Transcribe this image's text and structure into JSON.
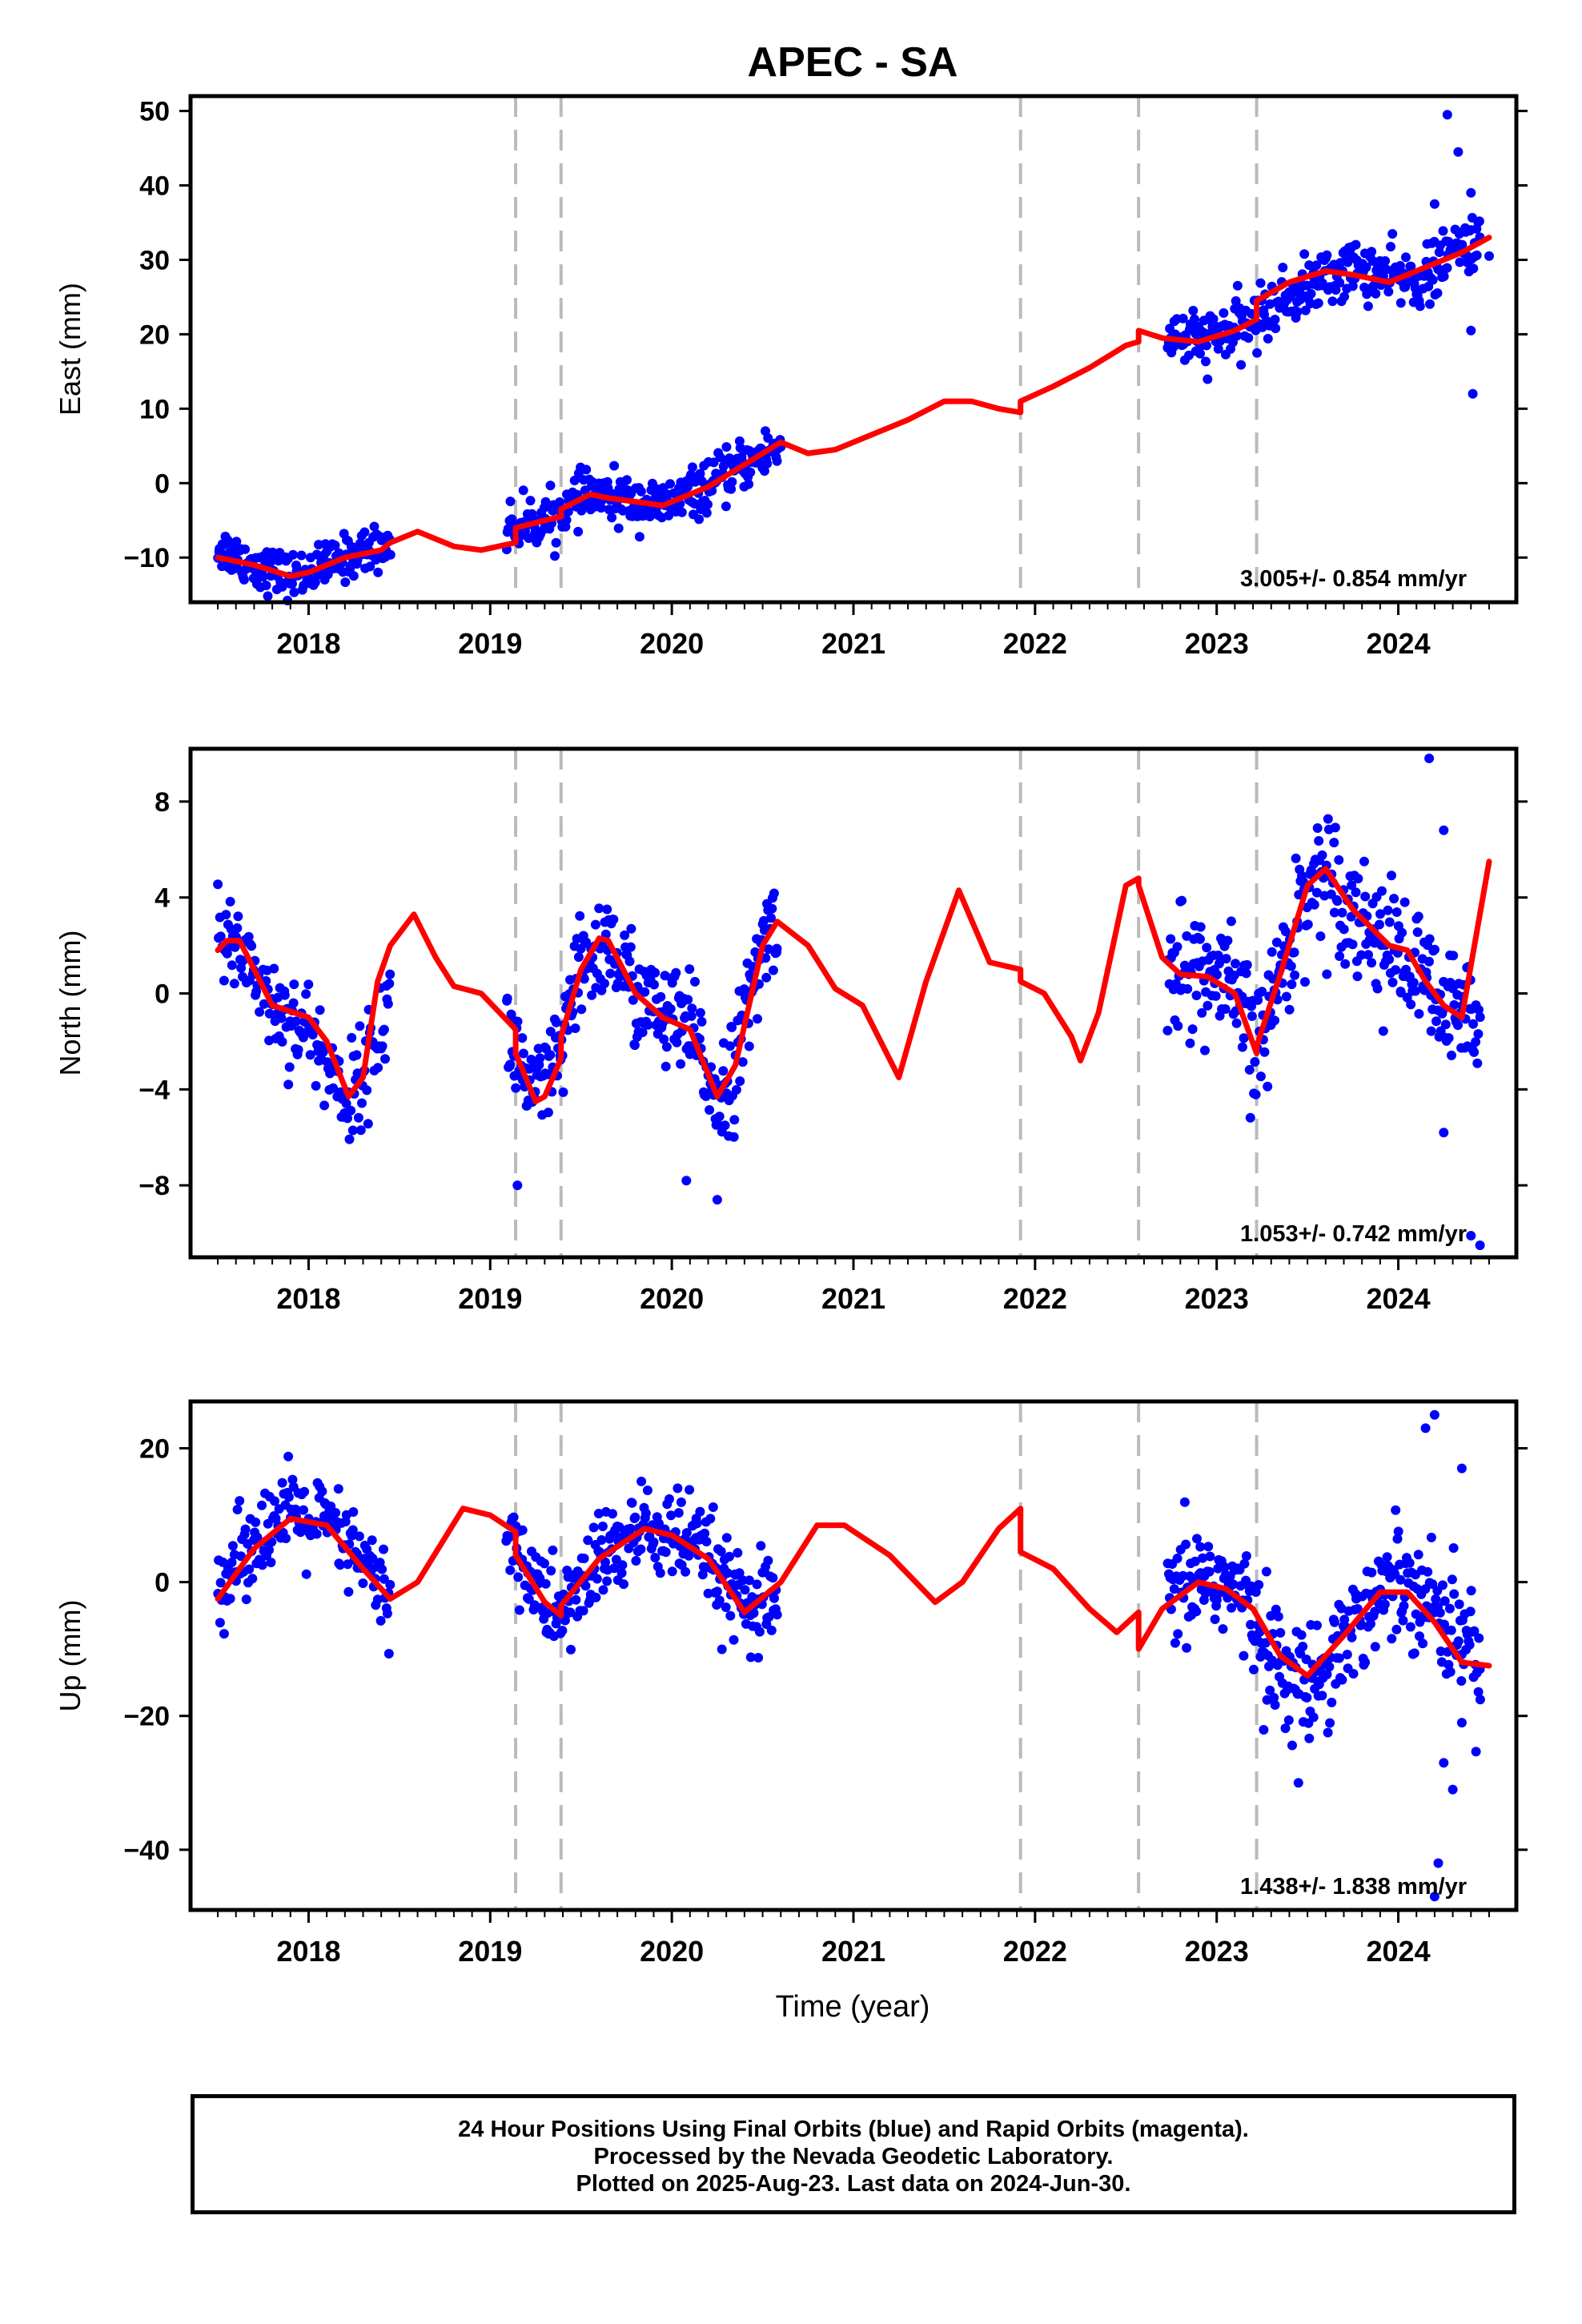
{
  "chart_data": {
    "type": "scatter",
    "title": "APEC - SA",
    "xlabel": "Time (year)",
    "x_tick_labels": [
      "2018",
      "2019",
      "2020",
      "2021",
      "2022",
      "2023",
      "2024"
    ],
    "xlim": [
      2017.35,
      2024.65
    ],
    "event_lines": [
      2019.14,
      2019.39,
      2021.92,
      2022.57,
      2023.22
    ],
    "colors": {
      "data": "#0000ff",
      "model": "#ff0000",
      "event": "#bbbbbb"
    },
    "grid": false,
    "panels": [
      {
        "ylabel": "East (mm)",
        "ylim": [
          -16,
          52
        ],
        "yticks": [
          -10,
          0,
          10,
          20,
          30,
          40,
          50
        ],
        "ytick_labels": [
          "−10",
          "0",
          "10",
          "20",
          "30",
          "40",
          "50"
        ],
        "rate_label": "3.005+/- 0.854 mm/yr",
        "data_series": {
          "name": "24 hour positions (final orbits)"
        },
        "model": {
          "x": [
            2017.5,
            2017.7,
            2017.9,
            2018.0,
            2018.2,
            2018.4,
            2018.45,
            2018.6,
            2018.8,
            2018.95,
            2019.14,
            2019.14,
            2019.3,
            2019.39,
            2019.39,
            2019.55,
            2019.65,
            2019.8,
            2019.95,
            2020.2,
            2020.4,
            2020.6,
            2020.75,
            2020.9,
            2021.1,
            2021.3,
            2021.5,
            2021.65,
            2021.8,
            2021.92,
            2021.92,
            2022.1,
            2022.3,
            2022.5,
            2022.57,
            2022.57,
            2022.7,
            2022.9,
            2023.1,
            2023.22,
            2023.22,
            2023.4,
            2023.6,
            2023.75,
            2023.95,
            2024.15,
            2024.35,
            2024.5
          ],
          "y": [
            -10,
            -11,
            -12.5,
            -12,
            -10,
            -9,
            -8,
            -6.5,
            -8.5,
            -9,
            -8,
            -6,
            -5,
            -4.5,
            -3.5,
            -1.5,
            -2,
            -2.5,
            -3,
            -0.5,
            2.5,
            5.5,
            4,
            4.5,
            6.5,
            8.5,
            11,
            11,
            10,
            9.5,
            11,
            13,
            15.5,
            18.5,
            19,
            20.5,
            19.5,
            19,
            20.5,
            22,
            24.5,
            27,
            28.5,
            28,
            27,
            29,
            31,
            33
          ]
        },
        "points": [
          {
            "x0": 2017.5,
            "x1": 2018.45,
            "spread": 1.5,
            "n": 180,
            "xs": [
              2017.5,
              2017.7,
              2017.9,
              2018.0,
              2018.2,
              2018.45
            ],
            "ys": [
              -8.5,
              -11,
              -12.5,
              -12,
              -10,
              -8
            ]
          },
          {
            "x0": 2019.09,
            "x1": 2020.6,
            "spread": 1.6,
            "n": 300,
            "xs": [
              2019.09,
              2019.3,
              2019.55,
              2019.65,
              2019.8,
              2019.95,
              2020.2,
              2020.4,
              2020.6
            ],
            "ys": [
              -6,
              -5,
              -1.5,
              -2,
              -2.5,
              -3,
              -0.5,
              2.5,
              5
            ]
          },
          {
            "x0": 2022.73,
            "x1": 2024.45,
            "spread": 1.9,
            "n": 330,
            "xs": [
              2022.73,
              2022.9,
              2023.1,
              2023.22,
              2023.4,
              2023.6,
              2023.75,
              2023.95,
              2024.15,
              2024.35,
              2024.45
            ],
            "ys": [
              20,
              19,
              20.5,
              22,
              25,
              27.5,
              29,
              27.5,
              27.5,
              32,
              33
            ]
          }
        ],
        "outliers": [
          [
            2024.27,
            49.5
          ],
          [
            2024.33,
            44.5
          ],
          [
            2024.4,
            39
          ],
          [
            2024.4,
            20.5
          ],
          [
            2024.41,
            12
          ],
          [
            2024.5,
            30.5
          ],
          [
            2024.2,
            37.5
          ]
        ]
      },
      {
        "ylabel": "North (mm)",
        "ylim": [
          -11,
          10.2
        ],
        "yticks": [
          -8,
          -4,
          0,
          4,
          8
        ],
        "ytick_labels": [
          "−8",
          "−4",
          "0",
          "4",
          "8"
        ],
        "rate_label": "1.053+/- 0.742 mm/yr",
        "data_series": {
          "name": "24 hour positions (final orbits)"
        },
        "model": {
          "x": [
            2017.5,
            2017.55,
            2017.62,
            2017.7,
            2017.8,
            2018.0,
            2018.1,
            2018.22,
            2018.3,
            2018.38,
            2018.45,
            2018.58,
            2018.7,
            2018.8,
            2018.95,
            2019.14,
            2019.14,
            2019.25,
            2019.3,
            2019.39,
            2019.39,
            2019.5,
            2019.6,
            2019.65,
            2019.8,
            2019.95,
            2020.1,
            2020.25,
            2020.35,
            2020.5,
            2020.58,
            2020.75,
            2020.9,
            2021.05,
            2021.25,
            2021.4,
            2021.58,
            2021.75,
            2021.92,
            2021.92,
            2022.05,
            2022.2,
            2022.25,
            2022.35,
            2022.5,
            2022.57,
            2022.57,
            2022.7,
            2022.8,
            2022.95,
            2023.1,
            2023.22,
            2023.22,
            2023.35,
            2023.5,
            2023.6,
            2023.75,
            2023.95,
            2024.05,
            2024.15,
            2024.25,
            2024.35,
            2024.5
          ],
          "y": [
            1.8,
            2.2,
            2.2,
            1,
            -0.5,
            -1,
            -2,
            -4.3,
            -3.5,
            0.5,
            2,
            3.3,
            1.5,
            0.3,
            0,
            -1.5,
            -2.5,
            -4.5,
            -4.3,
            -2.7,
            -1.8,
            1,
            2.3,
            2.2,
            0,
            -1,
            -1.5,
            -4.3,
            -3,
            2,
            3,
            2,
            0.2,
            -0.5,
            -3.5,
            0.5,
            4.3,
            1.3,
            1,
            0.5,
            0,
            -1.8,
            -2.8,
            -0.8,
            4.5,
            4.8,
            4.5,
            1.5,
            0.8,
            0.7,
            0,
            -2.5,
            -2.2,
            0.8,
            4.5,
            5.2,
            3.5,
            2,
            1.8,
            0.5,
            -0.5,
            -1,
            5.5
          ]
        },
        "points": [
          {
            "x0": 2017.5,
            "x1": 2018.45,
            "spread": 1.0,
            "n": 170,
            "xs": [
              2017.5,
              2017.62,
              2017.8,
              2018.0,
              2018.22,
              2018.38,
              2018.45
            ],
            "ys": [
              2,
              2.2,
              -0.5,
              -1.5,
              -4.5,
              -2,
              0
            ]
          },
          {
            "x0": 2019.09,
            "x1": 2020.58,
            "spread": 1.1,
            "n": 300,
            "xs": [
              2019.09,
              2019.25,
              2019.39,
              2019.5,
              2019.65,
              2019.8,
              2019.95,
              2020.1,
              2020.25,
              2020.35,
              2020.5,
              2020.58
            ],
            "ys": [
              -1.5,
              -4.5,
              -2.5,
              1,
              2.2,
              0,
              -1,
              -1.5,
              -4.3,
              -3,
              2,
              3
            ]
          },
          {
            "x0": 2022.73,
            "x1": 2024.45,
            "spread": 1.3,
            "n": 330,
            "xs": [
              2022.73,
              2022.95,
              2023.1,
              2023.22,
              2023.35,
              2023.5,
              2023.6,
              2023.75,
              2023.95,
              2024.15,
              2024.25,
              2024.35,
              2024.45
            ],
            "ys": [
              1.2,
              0.7,
              0,
              -2.5,
              0.8,
              4.5,
              5.2,
              3.5,
              2,
              0.5,
              -1,
              -1,
              0
            ]
          }
        ],
        "outliers": [
          [
            2024.17,
            9.8
          ],
          [
            2024.25,
            6.8
          ],
          [
            2024.45,
            -10.5
          ],
          [
            2024.4,
            -10.1
          ],
          [
            2024.25,
            -5.8
          ],
          [
            2020.08,
            -7.8
          ],
          [
            2020.25,
            -8.6
          ],
          [
            2019.15,
            -8
          ]
        ]
      },
      {
        "ylabel": "Up (mm)",
        "ylim": [
          -49,
          27
        ],
        "yticks": [
          -40,
          -20,
          0,
          20
        ],
        "ytick_labels": [
          "−40",
          "−20",
          "0",
          "20"
        ],
        "rate_label": "1.438+/- 1.838 mm/yr",
        "data_series": {
          "name": "24 hour positions (final orbits)"
        },
        "model": {
          "x": [
            2017.5,
            2017.7,
            2017.9,
            2018.1,
            2018.3,
            2018.45,
            2018.6,
            2018.85,
            2019.0,
            2019.14,
            2019.14,
            2019.3,
            2019.39,
            2019.39,
            2019.6,
            2019.85,
            2020.0,
            2020.2,
            2020.4,
            2020.6,
            2020.8,
            2020.95,
            2021.2,
            2021.45,
            2021.6,
            2021.8,
            2021.92,
            2021.92,
            2022.1,
            2022.3,
            2022.45,
            2022.57,
            2022.57,
            2022.7,
            2022.9,
            2023.05,
            2023.2,
            2023.35,
            2023.5,
            2023.7,
            2023.9,
            2024.05,
            2024.2,
            2024.35,
            2024.5
          ],
          "y": [
            -2.5,
            5,
            9.5,
            8.5,
            2,
            -2.5,
            0,
            11,
            10,
            7.5,
            4,
            -3,
            -5,
            -3.5,
            3.5,
            8,
            7,
            3.5,
            -4.5,
            0,
            8.5,
            8.5,
            4,
            -3,
            0,
            8,
            11,
            4.5,
            2,
            -4,
            -7.5,
            -4.5,
            -10,
            -4,
            0,
            -1,
            -4,
            -11,
            -14,
            -8,
            -1.5,
            -1.5,
            -6,
            -12,
            -12.5
          ]
        },
        "points": [
          {
            "x0": 2017.5,
            "x1": 2018.45,
            "spread": 3.3,
            "n": 170,
            "xs": [
              2017.5,
              2017.7,
              2017.9,
              2018.1,
              2018.3,
              2018.45
            ],
            "ys": [
              -1.5,
              7,
              10,
              8.5,
              3,
              -3
            ]
          },
          {
            "x0": 2019.09,
            "x1": 2020.58,
            "spread": 3.5,
            "n": 300,
            "xs": [
              2019.09,
              2019.3,
              2019.39,
              2019.6,
              2019.85,
              2020.0,
              2020.2,
              2020.4,
              2020.58
            ],
            "ys": [
              7.5,
              -3,
              -5,
              3.5,
              8,
              7,
              3.5,
              -4.5,
              -3
            ]
          },
          {
            "x0": 2022.73,
            "x1": 2024.45,
            "spread": 4.2,
            "n": 330,
            "xs": [
              2022.73,
              2022.9,
              2023.05,
              2023.2,
              2023.35,
              2023.5,
              2023.7,
              2023.9,
              2024.05,
              2024.2,
              2024.35,
              2024.45
            ],
            "ys": [
              -4,
              1,
              0,
              -5,
              -13,
              -16,
              -8,
              -1.5,
              1.5,
              -4,
              -8,
              -12
            ]
          }
        ],
        "outliers": [
          [
            2024.15,
            23
          ],
          [
            2024.2,
            25
          ],
          [
            2024.22,
            -42
          ],
          [
            2024.2,
            -47
          ],
          [
            2024.25,
            -27
          ],
          [
            2024.3,
            -31
          ],
          [
            2024.35,
            -21
          ],
          [
            2024.35,
            17
          ],
          [
            2023.45,
            -30
          ],
          [
            2024.45,
            -13
          ]
        ]
      }
    ]
  },
  "footer": {
    "line1": "24 Hour Positions Using Final Orbits (blue) and Rapid Orbits (magenta).",
    "line2": "Processed by the Nevada Geodetic Laboratory.",
    "line3": "Plotted on 2025-Aug-23. Last data on 2024-Jun-30."
  }
}
